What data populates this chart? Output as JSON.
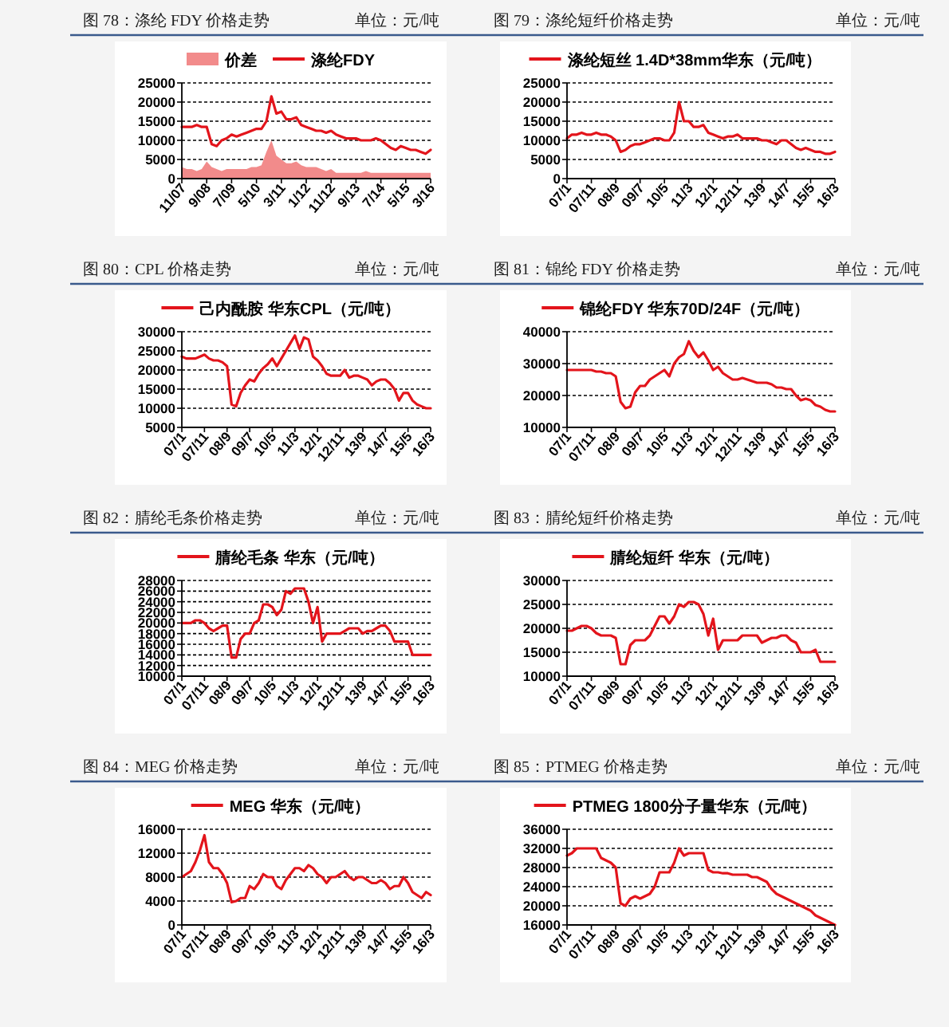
{
  "chart_data": [
    {
      "type": "line",
      "title": "图 78：涤纶 FDY 价格走势",
      "subtitle": "单位：元/吨",
      "legend": "top",
      "grid": "y",
      "line_style": "solid",
      "ylim": [
        0,
        25000
      ],
      "yticks": [
        0,
        5000,
        10000,
        15000,
        20000,
        25000
      ],
      "categories": [
        "11/07",
        null,
        null,
        null,
        null,
        "9/08",
        null,
        null,
        null,
        null,
        "7/09",
        null,
        null,
        null,
        null,
        "5/10",
        null,
        null,
        null,
        null,
        "3/11",
        null,
        null,
        null,
        null,
        "1/12",
        null,
        null,
        null,
        null,
        "11/12",
        null,
        null,
        null,
        null,
        "9/13",
        null,
        null,
        null,
        null,
        "7/14",
        null,
        null,
        null,
        null,
        "5/15",
        null,
        null,
        null,
        null,
        "3/16"
      ],
      "series": [
        {
          "name": "价差",
          "type": "area",
          "color": "#f28b8b",
          "values": [
            3000,
            2500,
            2500,
            2000,
            2500,
            4500,
            3000,
            2500,
            2000,
            2500,
            2500,
            2500,
            2500,
            2500,
            3000,
            3000,
            3500,
            7000,
            10000,
            6000,
            5000,
            4000,
            4000,
            4500,
            3500,
            3000,
            3000,
            3000,
            2500,
            2000,
            2500,
            1500,
            1500,
            1500,
            1500,
            1500,
            1500,
            2000,
            1500,
            1500,
            1500,
            1500,
            1500,
            1500,
            1500,
            1500,
            1500,
            1500,
            1500,
            1500,
            1500
          ]
        },
        {
          "name": "涤纶FDY",
          "type": "line",
          "color": "#e3141b",
          "values": [
            13500,
            13500,
            13500,
            14000,
            13500,
            13500,
            9000,
            8500,
            10000,
            10500,
            11500,
            11000,
            11500,
            12000,
            12500,
            13000,
            13000,
            15000,
            21500,
            17000,
            17500,
            15500,
            15500,
            16000,
            14000,
            13500,
            13000,
            12500,
            12500,
            12000,
            12500,
            11500,
            11000,
            10500,
            10500,
            10500,
            10000,
            10000,
            10000,
            10500,
            10000,
            9000,
            8000,
            7500,
            8500,
            8000,
            7500,
            7500,
            7000,
            6500,
            7500
          ]
        }
      ]
    },
    {
      "type": "line",
      "title": "图 79：涤纶短纤价格走势",
      "subtitle": "单位：元/吨",
      "legend": "top",
      "grid": "y",
      "line_style": "solid",
      "ylim": [
        0,
        25000
      ],
      "yticks": [
        0,
        5000,
        10000,
        15000,
        20000,
        25000
      ],
      "categories": [
        "07/1",
        null,
        null,
        null,
        null,
        "07/11",
        null,
        null,
        null,
        null,
        "08/9",
        null,
        null,
        null,
        null,
        "09/7",
        null,
        null,
        null,
        null,
        "10/5",
        null,
        null,
        null,
        null,
        "11/3",
        null,
        null,
        null,
        null,
        "12/1",
        null,
        null,
        null,
        null,
        "12/11",
        null,
        null,
        null,
        null,
        "13/9",
        null,
        null,
        null,
        null,
        "14/7",
        null,
        null,
        null,
        null,
        "15/5",
        null,
        null,
        null,
        null,
        "16/3"
      ],
      "series": [
        {
          "name": "涤纶短丝 1.4D*38mm华东（元/吨）",
          "type": "line",
          "color": "#e3141b",
          "values": [
            10500,
            11500,
            11500,
            12000,
            11500,
            11500,
            12000,
            11500,
            11500,
            11000,
            10000,
            7000,
            7500,
            8500,
            9000,
            9000,
            9500,
            10000,
            10500,
            10500,
            10000,
            10000,
            12000,
            20000,
            15000,
            15000,
            13500,
            13500,
            14000,
            12000,
            11500,
            11000,
            10500,
            11000,
            11000,
            11500,
            10500,
            10500,
            10500,
            10500,
            10000,
            10000,
            9500,
            9000,
            10000,
            10000,
            9000,
            8000,
            7500,
            8000,
            7500,
            7000,
            7000,
            6500,
            6500,
            7000
          ]
        }
      ]
    },
    {
      "type": "line",
      "title": "图 80：CPL 价格走势",
      "subtitle": "单位：元/吨",
      "legend": "top",
      "grid": "y",
      "line_style": "solid",
      "ylim": [
        5000,
        30000
      ],
      "yticks": [
        5000,
        10000,
        15000,
        20000,
        25000,
        30000
      ],
      "categories": [
        "07/1",
        null,
        null,
        null,
        null,
        "07/11",
        null,
        null,
        null,
        null,
        "08/9",
        null,
        null,
        null,
        null,
        "09/7",
        null,
        null,
        null,
        null,
        "10/5",
        null,
        null,
        null,
        null,
        "11/3",
        null,
        null,
        null,
        null,
        "12/1",
        null,
        null,
        null,
        null,
        "12/11",
        null,
        null,
        null,
        null,
        "13/9",
        null,
        null,
        null,
        null,
        "14/7",
        null,
        null,
        null,
        null,
        "15/5",
        null,
        null,
        null,
        null,
        "16/3"
      ],
      "series": [
        {
          "name": "己内酰胺 华东CPL（元/吨）",
          "type": "line",
          "color": "#e3141b",
          "values": [
            23500,
            23000,
            23000,
            23000,
            23500,
            24000,
            23000,
            22500,
            22500,
            22000,
            21000,
            11000,
            10500,
            14000,
            16000,
            17500,
            17000,
            19000,
            20500,
            21500,
            23000,
            21000,
            23000,
            25000,
            27000,
            29000,
            25500,
            28500,
            28000,
            23500,
            22500,
            21000,
            19000,
            18500,
            18500,
            18500,
            20000,
            18000,
            18500,
            18500,
            18000,
            17500,
            16000,
            17000,
            17500,
            17500,
            16500,
            15000,
            12000,
            14000,
            14000,
            12000,
            11000,
            10500,
            10000,
            10000
          ]
        }
      ]
    },
    {
      "type": "line",
      "title": "图 81：锦纶 FDY 价格走势",
      "subtitle": "单位：元/吨",
      "legend": "top",
      "grid": "y",
      "line_style": "solid",
      "ylim": [
        10000,
        40000
      ],
      "yticks": [
        10000,
        20000,
        30000,
        40000
      ],
      "categories": [
        "07/1",
        null,
        null,
        null,
        null,
        "07/11",
        null,
        null,
        null,
        null,
        "08/9",
        null,
        null,
        null,
        null,
        "09/7",
        null,
        null,
        null,
        null,
        "10/5",
        null,
        null,
        null,
        null,
        "11/3",
        null,
        null,
        null,
        null,
        "12/1",
        null,
        null,
        null,
        null,
        "12/11",
        null,
        null,
        null,
        null,
        "13/9",
        null,
        null,
        null,
        null,
        "14/7",
        null,
        null,
        null,
        null,
        "15/5",
        null,
        null,
        null,
        null,
        "16/3"
      ],
      "series": [
        {
          "name": "锦纶FDY 华东70D/24F（元/吨）",
          "type": "line",
          "color": "#e3141b",
          "values": [
            28000,
            28000,
            28000,
            28000,
            28000,
            28000,
            27500,
            27500,
            27000,
            27000,
            26000,
            18000,
            16000,
            16500,
            21000,
            23000,
            23000,
            25000,
            26000,
            27000,
            28000,
            26000,
            30000,
            32000,
            33000,
            37000,
            34000,
            32000,
            33500,
            31000,
            28000,
            29000,
            27000,
            26000,
            25000,
            25000,
            25500,
            25000,
            24500,
            24000,
            24000,
            24000,
            23500,
            22500,
            22500,
            22000,
            22000,
            20000,
            18500,
            19000,
            18500,
            17000,
            16500,
            15500,
            15000,
            15000
          ]
        }
      ]
    },
    {
      "type": "line",
      "title": "图 82：腈纶毛条价格走势",
      "subtitle": "单位：元/吨",
      "legend": "top",
      "grid": "y",
      "line_style": "solid",
      "ylim": [
        10000,
        28000
      ],
      "yticks": [
        10000,
        12000,
        14000,
        16000,
        18000,
        20000,
        22000,
        24000,
        26000,
        28000
      ],
      "categories": [
        "07/1",
        null,
        null,
        null,
        null,
        "07/11",
        null,
        null,
        null,
        null,
        "08/9",
        null,
        null,
        null,
        null,
        "09/7",
        null,
        null,
        null,
        null,
        "10/5",
        null,
        null,
        null,
        null,
        "11/3",
        null,
        null,
        null,
        null,
        "12/1",
        null,
        null,
        null,
        null,
        "12/11",
        null,
        null,
        null,
        null,
        "13/9",
        null,
        null,
        null,
        null,
        "14/7",
        null,
        null,
        null,
        null,
        "15/5",
        null,
        null,
        null,
        null,
        "16/3"
      ],
      "series": [
        {
          "name": "腈纶毛条 华东（元/吨）",
          "type": "line",
          "color": "#e3141b",
          "values": [
            20000,
            20000,
            20000,
            20500,
            20500,
            20000,
            19000,
            18500,
            19000,
            19500,
            19500,
            13500,
            13500,
            17000,
            18000,
            18000,
            20000,
            20500,
            23500,
            23500,
            23000,
            21500,
            22500,
            26000,
            25500,
            26500,
            26500,
            26500,
            24000,
            20000,
            23000,
            16500,
            18000,
            18000,
            18000,
            18000,
            18500,
            19000,
            19000,
            19000,
            18000,
            18500,
            18500,
            19000,
            19500,
            19500,
            18500,
            16500,
            16500,
            16500,
            16500,
            14000,
            14000,
            14000,
            14000,
            14000
          ]
        }
      ]
    },
    {
      "type": "line",
      "title": "图 83：腈纶短纤价格走势",
      "subtitle": "单位：元/吨",
      "legend": "top",
      "grid": "y",
      "line_style": "solid",
      "ylim": [
        10000,
        30000
      ],
      "yticks": [
        10000,
        15000,
        20000,
        25000,
        30000
      ],
      "categories": [
        "07/1",
        null,
        null,
        null,
        null,
        "07/11",
        null,
        null,
        null,
        null,
        "08/9",
        null,
        null,
        null,
        null,
        "09/7",
        null,
        null,
        null,
        null,
        "10/5",
        null,
        null,
        null,
        null,
        "11/3",
        null,
        null,
        null,
        null,
        "12/1",
        null,
        null,
        null,
        null,
        "12/11",
        null,
        null,
        null,
        null,
        "13/9",
        null,
        null,
        null,
        null,
        "14/7",
        null,
        null,
        null,
        null,
        "15/5",
        null,
        null,
        null,
        null,
        "16/3"
      ],
      "series": [
        {
          "name": "腈纶短纤 华东（元/吨）",
          "type": "line",
          "color": "#e3141b",
          "values": [
            19500,
            19500,
            20000,
            20500,
            20500,
            20000,
            19000,
            18500,
            18500,
            18500,
            18000,
            12500,
            12500,
            16500,
            17500,
            17500,
            17500,
            18500,
            20500,
            22500,
            22500,
            21000,
            22500,
            25000,
            24500,
            25500,
            25500,
            25000,
            23000,
            18500,
            22000,
            15500,
            17500,
            17500,
            17500,
            17500,
            18500,
            18500,
            18500,
            18500,
            17000,
            17500,
            18000,
            18000,
            18500,
            18500,
            17500,
            17000,
            15000,
            15000,
            15000,
            15500,
            13000,
            13000,
            13000,
            13000
          ]
        }
      ]
    },
    {
      "type": "line",
      "title": "图 84：MEG 价格走势",
      "subtitle": "单位：元/吨",
      "legend": "top",
      "grid": "y",
      "line_style": "solid",
      "ylim": [
        0,
        16000
      ],
      "yticks": [
        0,
        4000,
        8000,
        12000,
        16000
      ],
      "categories": [
        "07/1",
        null,
        null,
        null,
        null,
        "07/11",
        null,
        null,
        null,
        null,
        "08/9",
        null,
        null,
        null,
        null,
        "09/7",
        null,
        null,
        null,
        null,
        "10/5",
        null,
        null,
        null,
        null,
        "11/3",
        null,
        null,
        null,
        null,
        "12/1",
        null,
        null,
        null,
        null,
        "12/11",
        null,
        null,
        null,
        null,
        "13/9",
        null,
        null,
        null,
        null,
        "14/7",
        null,
        null,
        null,
        null,
        "15/5",
        null,
        null,
        null,
        null,
        "16/3"
      ],
      "series": [
        {
          "name": "MEG 华东（元/吨）",
          "type": "line",
          "color": "#e3141b",
          "values": [
            8000,
            8500,
            9000,
            10500,
            12500,
            15000,
            10500,
            9500,
            9500,
            8500,
            7000,
            3800,
            4000,
            4500,
            4500,
            6500,
            6000,
            7000,
            8500,
            8000,
            8000,
            6500,
            6000,
            7500,
            8500,
            9500,
            9500,
            9000,
            10000,
            9500,
            8500,
            8000,
            7000,
            8000,
            8000,
            8500,
            9000,
            8000,
            7500,
            8000,
            8000,
            7500,
            7000,
            7000,
            7500,
            7000,
            6000,
            6500,
            6500,
            8000,
            7000,
            5500,
            5000,
            4500,
            5500,
            5000
          ]
        }
      ]
    },
    {
      "type": "line",
      "title": "图 85：PTMEG 价格走势",
      "subtitle": "单位：元/吨",
      "legend": "top",
      "grid": "y",
      "line_style": "solid",
      "ylim": [
        16000,
        36000
      ],
      "yticks": [
        16000,
        20000,
        24000,
        28000,
        32000,
        36000
      ],
      "categories": [
        "07/1",
        null,
        null,
        null,
        null,
        "07/11",
        null,
        null,
        null,
        null,
        "08/9",
        null,
        null,
        null,
        null,
        "09/7",
        null,
        null,
        null,
        null,
        "10/5",
        null,
        null,
        null,
        null,
        "11/3",
        null,
        null,
        null,
        null,
        "12/1",
        null,
        null,
        null,
        null,
        "12/11",
        null,
        null,
        null,
        null,
        "13/9",
        null,
        null,
        null,
        null,
        "14/7",
        null,
        null,
        null,
        null,
        "15/5",
        null,
        null,
        null,
        null,
        "16/3"
      ],
      "series": [
        {
          "name": "PTMEG 1800分子量华东（元/吨）",
          "type": "line",
          "color": "#e3141b",
          "values": [
            30500,
            31000,
            32000,
            32000,
            32000,
            32000,
            32000,
            30000,
            29500,
            29000,
            28000,
            20500,
            20000,
            21500,
            22000,
            21500,
            22000,
            22500,
            24000,
            27000,
            27000,
            27000,
            29000,
            32000,
            30500,
            31000,
            31000,
            31000,
            31000,
            27500,
            27000,
            27000,
            26800,
            26800,
            26500,
            26500,
            26500,
            26500,
            26000,
            26000,
            25500,
            25000,
            23500,
            22500,
            22000,
            21500,
            21000,
            20500,
            20000,
            19500,
            19000,
            18000,
            17500,
            17000,
            16500,
            16000
          ]
        }
      ]
    }
  ]
}
